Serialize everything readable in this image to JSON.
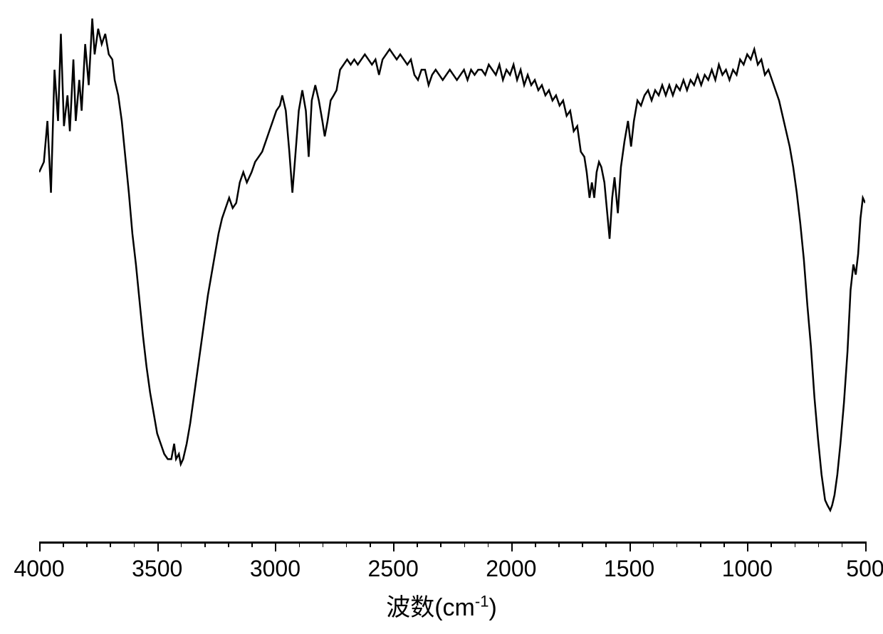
{
  "chart": {
    "type": "line",
    "xlabel_prefix": "波数(cm",
    "xlabel_sup": "-1",
    "xlabel_suffix": ")",
    "xlim": [
      4000,
      500
    ],
    "x_reversed": true,
    "x_ticks_major": [
      4000,
      3500,
      3000,
      2500,
      2000,
      1500,
      1000,
      500
    ],
    "x_minor_tick_step": 100,
    "line_color": "#000000",
    "line_width": 2.5,
    "background_color": "#ffffff",
    "tick_label_fontsize": 32,
    "axis_label_fontsize": 34,
    "y_hidden": true,
    "ylim": [
      0,
      100
    ],
    "data_points": [
      [
        4000,
        70
      ],
      [
        3980,
        72
      ],
      [
        3965,
        80
      ],
      [
        3950,
        66
      ],
      [
        3935,
        90
      ],
      [
        3920,
        80
      ],
      [
        3908,
        97
      ],
      [
        3895,
        79
      ],
      [
        3880,
        85
      ],
      [
        3870,
        78
      ],
      [
        3855,
        92
      ],
      [
        3845,
        80
      ],
      [
        3830,
        88
      ],
      [
        3820,
        82
      ],
      [
        3805,
        95
      ],
      [
        3790,
        87
      ],
      [
        3775,
        100
      ],
      [
        3765,
        93
      ],
      [
        3750,
        98
      ],
      [
        3735,
        95
      ],
      [
        3720,
        97
      ],
      [
        3705,
        93
      ],
      [
        3690,
        92
      ],
      [
        3680,
        88
      ],
      [
        3665,
        85
      ],
      [
        3650,
        80
      ],
      [
        3635,
        73
      ],
      [
        3620,
        66
      ],
      [
        3605,
        58
      ],
      [
        3590,
        52
      ],
      [
        3575,
        45
      ],
      [
        3560,
        38
      ],
      [
        3545,
        32
      ],
      [
        3530,
        27
      ],
      [
        3515,
        23
      ],
      [
        3500,
        19
      ],
      [
        3485,
        17
      ],
      [
        3470,
        15
      ],
      [
        3455,
        14
      ],
      [
        3440,
        14
      ],
      [
        3428,
        17
      ],
      [
        3420,
        14
      ],
      [
        3408,
        15
      ],
      [
        3400,
        13
      ],
      [
        3390,
        14
      ],
      [
        3375,
        17
      ],
      [
        3360,
        21
      ],
      [
        3345,
        26
      ],
      [
        3330,
        31
      ],
      [
        3315,
        36
      ],
      [
        3300,
        41
      ],
      [
        3285,
        46
      ],
      [
        3270,
        50
      ],
      [
        3255,
        54
      ],
      [
        3240,
        58
      ],
      [
        3225,
        61
      ],
      [
        3210,
        63
      ],
      [
        3195,
        65
      ],
      [
        3180,
        63
      ],
      [
        3165,
        64
      ],
      [
        3150,
        68
      ],
      [
        3135,
        70
      ],
      [
        3120,
        68
      ],
      [
        3100,
        70
      ],
      [
        3085,
        72
      ],
      [
        3070,
        73
      ],
      [
        3055,
        74
      ],
      [
        3040,
        76
      ],
      [
        3025,
        78
      ],
      [
        3010,
        80
      ],
      [
        2995,
        82
      ],
      [
        2980,
        83
      ],
      [
        2970,
        85
      ],
      [
        2955,
        82
      ],
      [
        2940,
        74
      ],
      [
        2927,
        66
      ],
      [
        2915,
        73
      ],
      [
        2900,
        82
      ],
      [
        2885,
        86
      ],
      [
        2870,
        82
      ],
      [
        2858,
        73
      ],
      [
        2845,
        84
      ],
      [
        2830,
        87
      ],
      [
        2815,
        84
      ],
      [
        2800,
        80
      ],
      [
        2790,
        77
      ],
      [
        2778,
        80
      ],
      [
        2765,
        84
      ],
      [
        2752,
        85
      ],
      [
        2740,
        86
      ],
      [
        2725,
        90
      ],
      [
        2710,
        91
      ],
      [
        2695,
        92
      ],
      [
        2680,
        91
      ],
      [
        2665,
        92
      ],
      [
        2650,
        91
      ],
      [
        2635,
        92
      ],
      [
        2620,
        93
      ],
      [
        2605,
        92
      ],
      [
        2590,
        91
      ],
      [
        2575,
        92
      ],
      [
        2560,
        89
      ],
      [
        2545,
        92
      ],
      [
        2530,
        93
      ],
      [
        2515,
        94
      ],
      [
        2500,
        93
      ],
      [
        2485,
        92
      ],
      [
        2470,
        93
      ],
      [
        2455,
        92
      ],
      [
        2440,
        91
      ],
      [
        2425,
        92
      ],
      [
        2410,
        89
      ],
      [
        2395,
        88
      ],
      [
        2380,
        90
      ],
      [
        2365,
        90
      ],
      [
        2350,
        87
      ],
      [
        2335,
        89
      ],
      [
        2320,
        90
      ],
      [
        2305,
        89
      ],
      [
        2290,
        88
      ],
      [
        2275,
        89
      ],
      [
        2260,
        90
      ],
      [
        2245,
        89
      ],
      [
        2230,
        88
      ],
      [
        2215,
        89
      ],
      [
        2200,
        90
      ],
      [
        2185,
        88
      ],
      [
        2170,
        90
      ],
      [
        2155,
        89
      ],
      [
        2140,
        90
      ],
      [
        2125,
        90
      ],
      [
        2110,
        89
      ],
      [
        2095,
        91
      ],
      [
        2080,
        90
      ],
      [
        2065,
        89
      ],
      [
        2050,
        91
      ],
      [
        2035,
        88
      ],
      [
        2020,
        90
      ],
      [
        2005,
        89
      ],
      [
        1990,
        91
      ],
      [
        1975,
        88
      ],
      [
        1960,
        90
      ],
      [
        1945,
        87
      ],
      [
        1930,
        89
      ],
      [
        1915,
        87
      ],
      [
        1900,
        88
      ],
      [
        1885,
        86
      ],
      [
        1870,
        87
      ],
      [
        1855,
        85
      ],
      [
        1840,
        86
      ],
      [
        1825,
        84
      ],
      [
        1810,
        85
      ],
      [
        1795,
        83
      ],
      [
        1780,
        84
      ],
      [
        1765,
        81
      ],
      [
        1750,
        82
      ],
      [
        1735,
        78
      ],
      [
        1720,
        79
      ],
      [
        1705,
        74
      ],
      [
        1690,
        73
      ],
      [
        1680,
        70
      ],
      [
        1668,
        65
      ],
      [
        1658,
        68
      ],
      [
        1648,
        65
      ],
      [
        1638,
        70
      ],
      [
        1628,
        72
      ],
      [
        1618,
        71
      ],
      [
        1605,
        68
      ],
      [
        1595,
        63
      ],
      [
        1583,
        57
      ],
      [
        1572,
        65
      ],
      [
        1562,
        69
      ],
      [
        1548,
        62
      ],
      [
        1535,
        71
      ],
      [
        1520,
        76
      ],
      [
        1505,
        80
      ],
      [
        1492,
        75
      ],
      [
        1480,
        80
      ],
      [
        1465,
        84
      ],
      [
        1450,
        83
      ],
      [
        1435,
        85
      ],
      [
        1420,
        86
      ],
      [
        1405,
        84
      ],
      [
        1390,
        86
      ],
      [
        1375,
        85
      ],
      [
        1360,
        87
      ],
      [
        1345,
        85
      ],
      [
        1330,
        87
      ],
      [
        1315,
        85
      ],
      [
        1300,
        87
      ],
      [
        1285,
        86
      ],
      [
        1270,
        88
      ],
      [
        1255,
        86
      ],
      [
        1240,
        88
      ],
      [
        1225,
        87
      ],
      [
        1210,
        89
      ],
      [
        1195,
        87
      ],
      [
        1180,
        89
      ],
      [
        1165,
        88
      ],
      [
        1150,
        90
      ],
      [
        1135,
        88
      ],
      [
        1120,
        91
      ],
      [
        1105,
        89
      ],
      [
        1090,
        90
      ],
      [
        1075,
        88
      ],
      [
        1060,
        90
      ],
      [
        1045,
        89
      ],
      [
        1030,
        92
      ],
      [
        1015,
        91
      ],
      [
        1000,
        93
      ],
      [
        985,
        92
      ],
      [
        970,
        94
      ],
      [
        955,
        91
      ],
      [
        940,
        92
      ],
      [
        925,
        89
      ],
      [
        910,
        90
      ],
      [
        895,
        88
      ],
      [
        880,
        86
      ],
      [
        865,
        84
      ],
      [
        850,
        81
      ],
      [
        835,
        78
      ],
      [
        820,
        75
      ],
      [
        805,
        71
      ],
      [
        790,
        66
      ],
      [
        775,
        60
      ],
      [
        760,
        53
      ],
      [
        745,
        44
      ],
      [
        730,
        36
      ],
      [
        715,
        26
      ],
      [
        700,
        18
      ],
      [
        685,
        11
      ],
      [
        670,
        6
      ],
      [
        660,
        5
      ],
      [
        648,
        4
      ],
      [
        640,
        5
      ],
      [
        630,
        7
      ],
      [
        618,
        11
      ],
      [
        605,
        17
      ],
      [
        590,
        25
      ],
      [
        575,
        35
      ],
      [
        562,
        47
      ],
      [
        550,
        52
      ],
      [
        540,
        50
      ],
      [
        530,
        54
      ],
      [
        520,
        61
      ],
      [
        510,
        65
      ],
      [
        500,
        64
      ]
    ]
  }
}
